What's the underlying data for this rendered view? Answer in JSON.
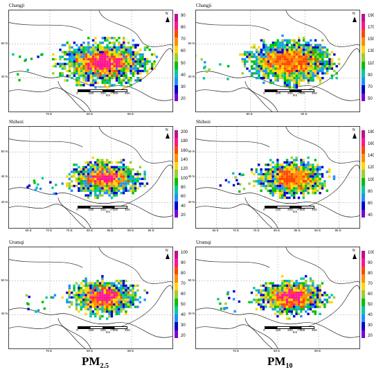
{
  "panels": [
    {
      "id": "p1",
      "title": "Changji",
      "lats": [
        "50 N",
        "40 N"
      ],
      "lons": [
        "70 E",
        "80 E",
        "90 E"
      ],
      "ticks": [
        "90",
        "80",
        "70",
        "60",
        "50",
        "40",
        "30",
        "20"
      ],
      "colors": [
        "#c0108c",
        "#ff1493",
        "#ff4500",
        "#ff8c00",
        "#ffd700",
        "#9acd32",
        "#00c000",
        "#00c8a0",
        "#1e90ff",
        "#0000cd",
        "#7b00d4"
      ],
      "scale": [
        "0",
        "100",
        "200",
        "300",
        "400"
      ],
      "scale_unit": "km"
    },
    {
      "id": "p2",
      "title": "Changji",
      "lats": [
        "50 N",
        "40 N"
      ],
      "lons": [
        "80 E",
        "90 E"
      ],
      "ticks": [
        "190",
        "170",
        "150",
        "130",
        "110",
        "90",
        "70",
        "50"
      ],
      "colors": [
        "#c0108c",
        "#ff1493",
        "#ff4500",
        "#ff8c00",
        "#ffd700",
        "#9acd32",
        "#00c000",
        "#00c8a0",
        "#1e90ff",
        "#0000cd",
        "#7b00d4"
      ],
      "scale": [
        "0",
        "100",
        "200",
        "300",
        "400"
      ],
      "scale_unit": "km"
    },
    {
      "id": "p3",
      "title": "Shihezi",
      "lats": [
        "50 N",
        "45 N",
        "40 N"
      ],
      "lons": [
        "65 E",
        "70 E",
        "75 E",
        "80 E",
        "85 E",
        "90 E",
        "95 E"
      ],
      "ticks": [
        "200",
        "180",
        "160",
        "140",
        "120",
        "100",
        "80",
        "60",
        "40",
        "20"
      ],
      "colors": [
        "#c0108c",
        "#ff1493",
        "#ff4500",
        "#ff8c00",
        "#ffd700",
        "#9acd32",
        "#00c000",
        "#00c8a0",
        "#1e90ff",
        "#0000cd",
        "#7b00d4"
      ],
      "scale": [
        "0",
        "100",
        "200",
        "300",
        "400"
      ],
      "scale_unit": "km"
    },
    {
      "id": "p4",
      "title": "Shihezi",
      "lats": [
        "50 N",
        "45 N",
        "40 N"
      ],
      "lons": [
        "65 E",
        "70 E",
        "75 E",
        "80 E",
        "85 E",
        "90 E",
        "95 E"
      ],
      "ticks": [
        "180",
        "160",
        "140",
        "120",
        "100",
        "80",
        "60",
        "40"
      ],
      "colors": [
        "#c0108c",
        "#ff1493",
        "#ff4500",
        "#ff8c00",
        "#ffd700",
        "#9acd32",
        "#00c000",
        "#00c8a0",
        "#1e90ff",
        "#0000cd",
        "#7b00d4"
      ],
      "scale": [
        "0",
        "100",
        "200",
        "300",
        "400"
      ],
      "scale_unit": "km"
    },
    {
      "id": "p5",
      "title": "Urumqi",
      "lats": [
        "50 N",
        "40 N"
      ],
      "lons": [
        "70 E",
        "80 E",
        "90 E"
      ],
      "ticks": [
        "100",
        "90",
        "80",
        "70",
        "60",
        "50",
        "40",
        "30",
        "20"
      ],
      "colors": [
        "#c0108c",
        "#ff1493",
        "#ff4500",
        "#ff8c00",
        "#ffd700",
        "#9acd32",
        "#00c000",
        "#00c8a0",
        "#1e90ff",
        "#0000cd",
        "#7b00d4"
      ],
      "scale": [
        "0",
        "100",
        "200",
        "300",
        "400"
      ],
      "scale_unit": "km"
    },
    {
      "id": "p6",
      "title": "Urumqi",
      "lats": [
        "50 N",
        "40 N"
      ],
      "lons": [
        "70 E",
        "80 E",
        "90 E"
      ],
      "ticks": [
        "100",
        "90",
        "80",
        "70",
        "60",
        "50",
        "40",
        "30",
        "20"
      ],
      "colors": [
        "#c0108c",
        "#ff1493",
        "#ff4500",
        "#ff8c00",
        "#ffd700",
        "#9acd32",
        "#00c000",
        "#00c8a0",
        "#1e90ff",
        "#0000cd",
        "#7b00d4"
      ],
      "scale": [
        "0",
        "100",
        "200",
        "300",
        "400"
      ],
      "scale_unit": "km"
    }
  ],
  "north_label": "N",
  "bottom": {
    "left_main": "PM",
    "left_sub": "2.5",
    "right_main": "PM",
    "right_sub": "10"
  }
}
